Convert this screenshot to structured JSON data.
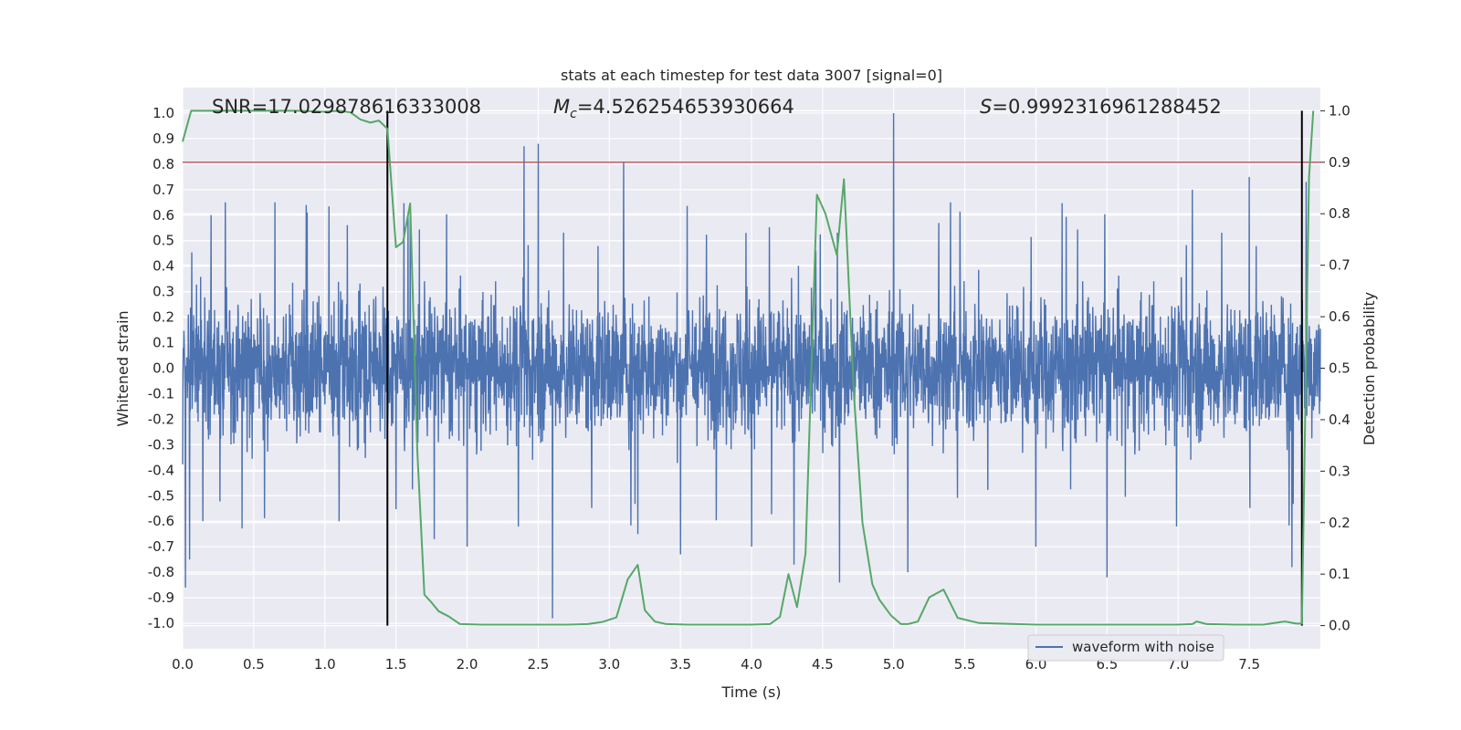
{
  "chart_data": {
    "type": "line",
    "title": "stats at each timestep for test data 3007 [signal=0]",
    "xlabel": "Time (s)",
    "ylabel": "Whitened strain",
    "y2label": "Detection probability",
    "xlim": [
      0.0,
      8.0
    ],
    "ylim": [
      -1.1,
      1.1
    ],
    "y2lim": [
      -0.045,
      1.045
    ],
    "xticks": [
      "0.0",
      "0.5",
      "1.0",
      "1.5",
      "2.0",
      "2.5",
      "3.0",
      "3.5",
      "4.0",
      "4.5",
      "5.0",
      "5.5",
      "6.0",
      "6.5",
      "7.0",
      "7.5"
    ],
    "yticks": [
      "1.0",
      "0.9",
      "0.8",
      "0.7",
      "0.6",
      "0.5",
      "0.4",
      "0.3",
      "0.2",
      "0.1",
      "0.0",
      "-0.1",
      "-0.2",
      "-0.3",
      "-0.4",
      "-0.5",
      "-0.6",
      "-0.7",
      "-0.8",
      "-0.9",
      "-1.0"
    ],
    "y2ticks": [
      "1.0",
      "0.9",
      "0.8",
      "0.7",
      "0.6",
      "0.5",
      "0.4",
      "0.3",
      "0.2",
      "0.1",
      "0.0"
    ],
    "annotations": {
      "snr": "SNR=17.029878616333008",
      "mc_symbol": "M",
      "mc_sub": "c",
      "mc_value": "=4.526254653930664",
      "s_symbol": "S",
      "s_value": "=0.9992316961288452"
    },
    "threshold": {
      "y2": 0.9,
      "color": "#c44e52"
    },
    "vlines": [
      {
        "x": 1.44,
        "color": "#000000"
      },
      {
        "x": 7.87,
        "color": "#000000"
      }
    ],
    "series": [
      {
        "name": "waveform with noise",
        "axis": "left",
        "color": "#4c72b0",
        "kind": "noise",
        "core_amplitude": 0.3,
        "peaks_positive": [
          [
            0.05,
            0.47
          ],
          [
            0.2,
            0.6
          ],
          [
            0.3,
            0.65
          ],
          [
            0.65,
            0.65
          ],
          [
            1.1,
            0.65
          ],
          [
            1.6,
            0.6
          ],
          [
            2.4,
            0.87
          ],
          [
            2.5,
            0.88
          ],
          [
            3.1,
            0.81
          ],
          [
            3.2,
            0.78
          ],
          [
            4.3,
            0.7
          ],
          [
            5.0,
            1.0
          ],
          [
            5.4,
            0.65
          ],
          [
            6.0,
            0.65
          ],
          [
            7.1,
            0.7
          ],
          [
            7.5,
            0.75
          ],
          [
            7.9,
            0.73
          ]
        ],
        "peaks_negative": [
          [
            0.02,
            -0.86
          ],
          [
            0.05,
            -0.75
          ],
          [
            1.1,
            -0.6
          ],
          [
            1.77,
            -0.67
          ],
          [
            2.0,
            -0.7
          ],
          [
            2.6,
            -0.98
          ],
          [
            3.2,
            -0.65
          ],
          [
            3.5,
            -0.73
          ],
          [
            4.0,
            -0.7
          ],
          [
            4.3,
            -0.77
          ],
          [
            4.62,
            -0.84
          ],
          [
            5.1,
            -0.8
          ],
          [
            6.0,
            -0.7
          ],
          [
            6.5,
            -0.82
          ],
          [
            7.8,
            -0.78
          ]
        ]
      },
      {
        "name": "detection probability",
        "axis": "right",
        "color": "#55a868",
        "x": [
          0.0,
          0.06,
          0.2,
          0.4,
          0.6,
          0.8,
          1.0,
          1.1,
          1.18,
          1.25,
          1.32,
          1.38,
          1.44,
          1.5,
          1.55,
          1.6,
          1.65,
          1.7,
          1.75,
          1.8,
          1.87,
          1.95,
          2.1,
          2.3,
          2.5,
          2.7,
          2.85,
          2.95,
          3.05,
          3.13,
          3.2,
          3.25,
          3.32,
          3.4,
          3.55,
          3.8,
          4.0,
          4.13,
          4.2,
          4.26,
          4.32,
          4.38,
          4.46,
          4.52,
          4.6,
          4.65,
          4.72,
          4.78,
          4.85,
          4.9,
          4.98,
          5.05,
          5.1,
          5.17,
          5.25,
          5.35,
          5.45,
          5.6,
          6.0,
          6.5,
          7.0,
          7.1,
          7.13,
          7.2,
          7.4,
          7.6,
          7.75,
          7.83,
          7.87,
          7.92,
          7.95
        ],
        "values": [
          0.94,
          1.0,
          1.0,
          1.0,
          1.0,
          1.0,
          0.998,
          1.0,
          0.997,
          0.983,
          0.977,
          0.981,
          0.965,
          0.735,
          0.745,
          0.82,
          0.34,
          0.06,
          0.045,
          0.028,
          0.018,
          0.003,
          0.002,
          0.002,
          0.002,
          0.002,
          0.003,
          0.007,
          0.016,
          0.09,
          0.118,
          0.03,
          0.008,
          0.003,
          0.002,
          0.002,
          0.002,
          0.003,
          0.017,
          0.1,
          0.036,
          0.14,
          0.837,
          0.8,
          0.72,
          0.867,
          0.45,
          0.2,
          0.08,
          0.05,
          0.02,
          0.003,
          0.003,
          0.008,
          0.055,
          0.07,
          0.015,
          0.005,
          0.002,
          0.002,
          0.002,
          0.003,
          0.008,
          0.003,
          0.002,
          0.002,
          0.008,
          0.004,
          0.004,
          0.87,
          1.0
        ]
      }
    ],
    "legend": {
      "label": "waveform with noise",
      "placement": "lower-right"
    }
  }
}
